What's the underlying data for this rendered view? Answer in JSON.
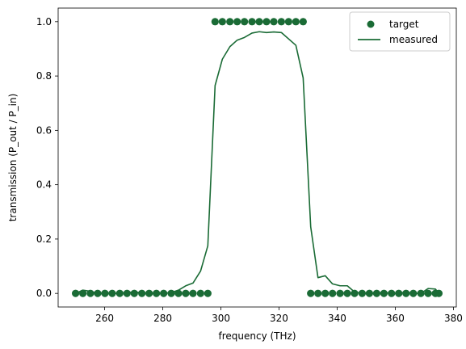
{
  "chart_data": {
    "type": "scatter",
    "xlabel": "frequency (THz)",
    "ylabel": "transmission (P_out / P_in)",
    "xlim": [
      244,
      381
    ],
    "ylim": [
      -0.05,
      1.05
    ],
    "xticks": [
      260,
      280,
      300,
      320,
      340,
      360,
      380
    ],
    "yticks": [
      0.0,
      0.2,
      0.4,
      0.6,
      0.8,
      1.0
    ],
    "xtick_labels": [
      "260",
      "280",
      "300",
      "320",
      "340",
      "360",
      "380"
    ],
    "ytick_labels": [
      "0.0",
      "0.2",
      "0.4",
      "0.6",
      "0.8",
      "1.0"
    ],
    "grid": false,
    "legend": "top-right",
    "color": "#1a6b35",
    "series": [
      {
        "name": "target",
        "kind": "scatter",
        "x": [
          250.0,
          252.5,
          255.1,
          257.6,
          260.1,
          262.6,
          265.2,
          267.7,
          270.2,
          272.8,
          275.3,
          277.8,
          280.3,
          282.9,
          285.4,
          287.9,
          290.4,
          293.0,
          295.5,
          298.0,
          300.5,
          303.1,
          305.6,
          308.1,
          310.7,
          313.2,
          315.7,
          318.2,
          320.8,
          323.3,
          325.8,
          328.3,
          330.9,
          333.4,
          335.9,
          338.4,
          341.0,
          343.5,
          346.0,
          348.6,
          351.1,
          353.6,
          356.1,
          358.7,
          361.2,
          363.7,
          366.2,
          368.8,
          371.3,
          373.8,
          375.0
        ],
        "y": [
          0,
          0,
          0,
          0,
          0,
          0,
          0,
          0,
          0,
          0,
          0,
          0,
          0,
          0,
          0,
          0,
          0,
          0,
          0,
          1,
          1,
          1,
          1,
          1,
          1,
          1,
          1,
          1,
          1,
          1,
          1,
          1,
          0,
          0,
          0,
          0,
          0,
          0,
          0,
          0,
          0,
          0,
          0,
          0,
          0,
          0,
          0,
          0,
          0,
          0,
          0
        ]
      },
      {
        "name": "measured",
        "kind": "line",
        "x": [
          250.0,
          252.5,
          255.1,
          257.6,
          260.1,
          262.6,
          265.2,
          267.7,
          270.2,
          272.8,
          275.3,
          277.8,
          280.3,
          282.9,
          285.4,
          287.9,
          290.4,
          293.0,
          295.5,
          298.0,
          300.5,
          303.1,
          305.6,
          308.1,
          310.7,
          313.2,
          315.7,
          318.2,
          320.8,
          325.8,
          328.3,
          330.9,
          333.4,
          335.9,
          338.4,
          341.0,
          343.5,
          346.0,
          348.6,
          351.1,
          353.6,
          356.1,
          358.7,
          361.2,
          363.7,
          366.2,
          368.8,
          371.3,
          373.8,
          375.0
        ],
        "y": [
          0.0,
          0.012,
          0.008,
          0.0,
          0.0,
          0.0,
          0.0,
          0.003,
          0.006,
          0.002,
          0.0,
          0.0,
          0.0,
          0.003,
          0.012,
          0.028,
          0.038,
          0.082,
          0.175,
          0.765,
          0.862,
          0.908,
          0.932,
          0.942,
          0.958,
          0.963,
          0.96,
          0.962,
          0.96,
          0.913,
          0.793,
          0.245,
          0.058,
          0.065,
          0.035,
          0.028,
          0.028,
          0.005,
          0.0,
          0.0,
          0.0,
          0.003,
          0.0,
          0.0,
          0.005,
          0.0,
          0.0,
          0.018,
          0.016,
          0.0
        ]
      }
    ]
  }
}
